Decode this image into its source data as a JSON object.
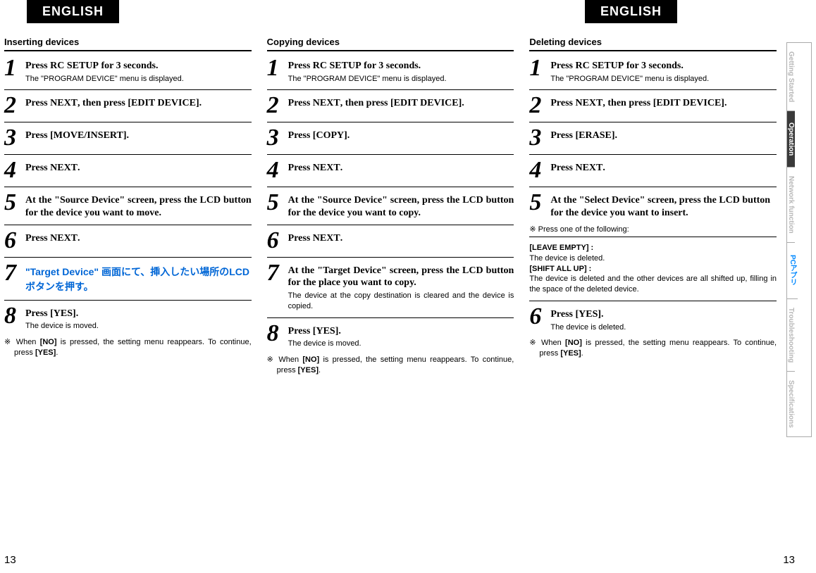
{
  "lang_label": "ENGLISH",
  "page_number": "13",
  "sidebar": [
    {
      "label": "Getting Started",
      "cls": "inactive"
    },
    {
      "label": "Operation",
      "cls": "active"
    },
    {
      "label": "Network function",
      "cls": "inactive"
    },
    {
      "label": "PCアプリ",
      "cls": "blue"
    },
    {
      "label": "Troubleshooting",
      "cls": "inactive"
    },
    {
      "label": "Specifications",
      "cls": "inactive"
    }
  ],
  "columns": [
    {
      "title": "Inserting devices",
      "steps": [
        {
          "n": "1",
          "main": "Press <b>RC SETUP</b> for 3 seconds.",
          "sub": "The \"PROGRAM DEVICE\" menu is displayed."
        },
        {
          "n": "2",
          "main": "Press <b>NEXT</b>, then press <b>[EDIT DEVICE]</b>."
        },
        {
          "n": "3",
          "main": "Press <b>[MOVE/INSERT]</b>."
        },
        {
          "n": "4",
          "main": "Press <b>NEXT</b>."
        },
        {
          "n": "5",
          "main": "At the \"Source Device\" screen, press the <b>LCD button</b> for the device you want to move.",
          "justify": true
        },
        {
          "n": "6",
          "main": "Press <b>NEXT</b>."
        },
        {
          "n": "7",
          "main_html": "<span class='blue-jp'>\"Target Device\" 画面にて、挿入したい場所の<b>LCDボタン</b>を押す。</span>"
        },
        {
          "n": "8",
          "main": "Press <b>[YES]</b>.",
          "sub": "The device is moved.",
          "note": "※ When <b>[NO]</b> is pressed, the setting menu reappears. To continue, press <b>[YES]</b>."
        }
      ]
    },
    {
      "title": "Copying devices",
      "steps": [
        {
          "n": "1",
          "main": "Press <b>RC SETUP</b> for 3 seconds.",
          "sub": "The \"PROGRAM DEVICE\" menu is displayed."
        },
        {
          "n": "2",
          "main": "Press <b>NEXT</b>, then press <b>[EDIT DEVICE]</b>."
        },
        {
          "n": "3",
          "main": "Press <b>[COPY]</b>."
        },
        {
          "n": "4",
          "main": "Press <b>NEXT</b>."
        },
        {
          "n": "5",
          "main": "At the \"Source Device\" screen, press the <b>LCD button</b> for the device you want to copy.",
          "justify": true
        },
        {
          "n": "6",
          "main": "Press <b>NEXT</b>."
        },
        {
          "n": "7",
          "main": "At the \"Target Device\" screen, press the <b>LCD button</b> for the place you want to copy.",
          "justify": true,
          "sub": "The device at the copy destination is cleared and the device is copied.",
          "sub_justify": true
        },
        {
          "n": "8",
          "main": "Press <b>[YES]</b>.",
          "sub": "The device is moved.",
          "note": "※ When <b>[NO]</b> is pressed, the setting menu reappears. To continue, press <b>[YES]</b>."
        }
      ]
    },
    {
      "title": "Deleting devices",
      "steps": [
        {
          "n": "1",
          "main": "Press <b>RC SETUP</b> for 3 seconds.",
          "sub": "The \"PROGRAM DEVICE\" menu is displayed."
        },
        {
          "n": "2",
          "main": "Press <b>NEXT</b>, then press <b>[EDIT DEVICE]</b>."
        },
        {
          "n": "3",
          "main": "Press <b>[ERASE]</b>."
        },
        {
          "n": "4",
          "main": "Press <b>NEXT</b>."
        },
        {
          "n": "5",
          "main": "At the \"Select Device\" screen, press the <b>LCD button</b> for the device you want to insert.",
          "after_html": "<div class='note'>※ Press one of the following:</div><div class='step-sep'></div><div class='sub-block'><span class='hdr'>[LEAVE EMPTY] :</span>The device is deleted.<br><span class='hdr'>[SHIFT ALL UP] :</span>The device is deleted and the other devices are all shifted up, filling in the space of the deleted device.</div><div class='step-sep'></div>"
        },
        {
          "n": "6",
          "main": "Press <b>[YES]</b>.",
          "sub": "The device is deleted.",
          "note": "※ When <b>[NO]</b> is pressed, the setting menu reappears. To continue, press <b>[YES]</b>."
        }
      ]
    }
  ]
}
